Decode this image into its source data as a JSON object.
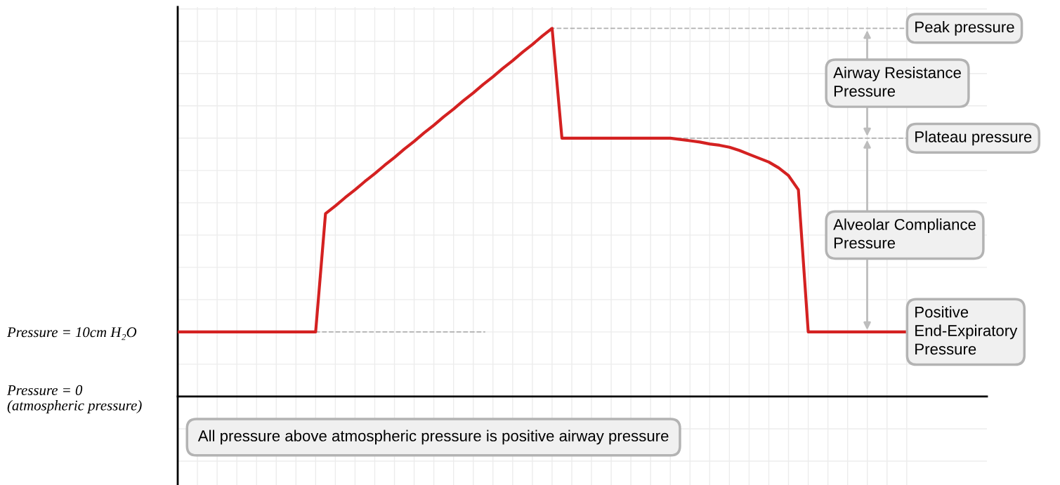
{
  "chart_data": {
    "type": "line",
    "categories": [
      null,
      null,
      null,
      null,
      null,
      null,
      null,
      null,
      null,
      null,
      null,
      null,
      null,
      null,
      null,
      null,
      null,
      null,
      null,
      null,
      null,
      null,
      null,
      null,
      null,
      null,
      null,
      null,
      null,
      null,
      null,
      null,
      null,
      null,
      null,
      null,
      null,
      null,
      null,
      null,
      null,
      null,
      null,
      null,
      null,
      null,
      null,
      null,
      null,
      null,
      null,
      null,
      null,
      null,
      null,
      null,
      null,
      null,
      null,
      null,
      null,
      null,
      null,
      null,
      null,
      null,
      null,
      null,
      null,
      null,
      null,
      null,
      null,
      null,
      null
    ],
    "series": [
      {
        "color": "#d42121",
        "values": [
          10,
          10,
          10,
          10,
          10,
          10,
          10,
          10,
          10,
          10,
          10,
          10,
          10,
          10,
          10,
          28.3,
          29.5,
          30.8,
          32,
          33.3,
          34.5,
          35.8,
          37,
          38.3,
          39.5,
          40.8,
          42,
          43.3,
          44.5,
          45.8,
          47,
          48.3,
          49.5,
          50.8,
          52,
          53.3,
          54.5,
          55.8,
          57,
          40,
          40,
          40,
          40,
          40,
          40,
          40,
          40,
          40,
          40,
          40,
          40,
          39.8,
          39.6,
          39.4,
          39.1,
          38.9,
          38.6,
          38.1,
          37.5,
          36.9,
          36.3,
          35.4,
          34.2,
          32,
          10,
          10,
          10,
          10,
          10,
          10,
          10,
          10,
          10,
          10,
          10
        ]
      }
    ],
    "ylim": [
      -13.7,
      60.3
    ],
    "yticks": [
      {
        "value": -10,
        "label": null
      },
      {
        "value": -5,
        "label": null
      },
      {
        "value": 0,
        "label": "Pressure = 0\n(atmospheric pressure)"
      },
      {
        "value": 5,
        "label": null
      },
      {
        "value": 10,
        "label": "Pressure = 10cm H₂O"
      },
      {
        "value": 15,
        "label": null
      },
      {
        "value": 20,
        "label": null
      },
      {
        "value": 25,
        "label": null
      },
      {
        "value": 30,
        "label": null
      },
      {
        "value": 35,
        "label": null
      },
      {
        "value": 40,
        "label": null
      },
      {
        "value": 45,
        "label": null
      },
      {
        "value": 50,
        "label": null
      },
      {
        "value": 55,
        "label": null
      },
      {
        "value": 60,
        "label": null
      }
    ],
    "tick_labels": "y",
    "grid": true,
    "marker": "none",
    "line_style": "solid",
    "ref_lines": [
      {
        "axis": "y",
        "value": 57,
        "label": "Peak pressure",
        "color": "#b0b0b0",
        "line_style": "dashed"
      },
      {
        "axis": "y",
        "value": 40,
        "label": "Plateau pressure",
        "color": "#b0b0b0",
        "line_style": "dashed"
      },
      {
        "axis": "y",
        "value": 10,
        "color": "#b0b0b0",
        "line_style": "dashed"
      }
    ],
    "annotations": [
      "Airway Resistance\nPressure",
      "Alveolar Compliance\nPressure",
      "Positive\nEnd-Expiratory\nPressure",
      "All pressure above atmospheric pressure is positive airway pressure"
    ]
  }
}
